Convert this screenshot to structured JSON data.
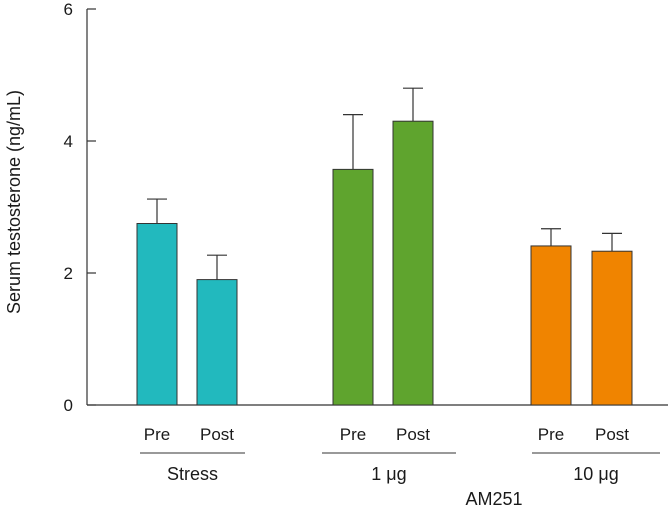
{
  "chart_data": {
    "type": "bar",
    "ylabel": "Serum testosterone (ng/mL)",
    "ylim": [
      0,
      6
    ],
    "yticks": [
      "0",
      "2",
      "4",
      "6"
    ],
    "error_bars": "upper",
    "groups": [
      {
        "label": "Stress",
        "color": "#22b9be",
        "bars": [
          {
            "category": "Pre",
            "value": 2.75,
            "error": 0.37
          },
          {
            "category": "Post",
            "value": 1.9,
            "error": 0.37
          }
        ]
      },
      {
        "label": "1 μg",
        "color": "#5fa42e",
        "bars": [
          {
            "category": "Pre",
            "value": 3.57,
            "error": 0.83
          },
          {
            "category": "Post",
            "value": 4.3,
            "error": 0.5
          }
        ]
      },
      {
        "label": "10 μg",
        "color": "#f08400",
        "bars": [
          {
            "category": "Pre",
            "value": 2.41,
            "error": 0.26
          },
          {
            "category": "Post",
            "value": 2.33,
            "error": 0.27
          }
        ]
      }
    ],
    "super_label": "AM251"
  }
}
